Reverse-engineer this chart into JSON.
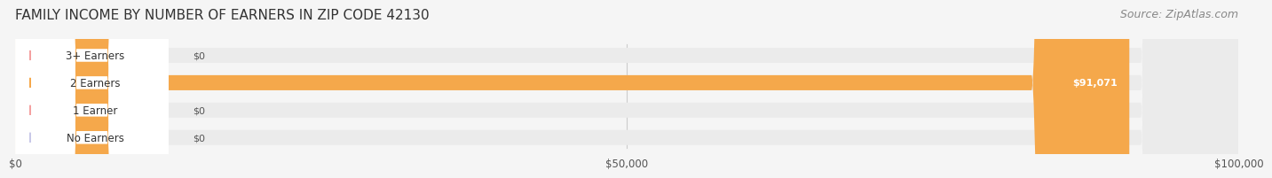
{
  "title": "FAMILY INCOME BY NUMBER OF EARNERS IN ZIP CODE 42130",
  "source": "Source: ZipAtlas.com",
  "categories": [
    "No Earners",
    "1 Earner",
    "2 Earners",
    "3+ Earners"
  ],
  "values": [
    0,
    0,
    91071,
    0
  ],
  "bar_colors": [
    "#a8a8d8",
    "#f08080",
    "#f5a84b",
    "#f08080"
  ],
  "label_bg_colors": [
    "#c8c8e8",
    "#f4a0a0",
    "#f5a84b",
    "#f4a0a0"
  ],
  "xlim": [
    0,
    100000
  ],
  "xticks": [
    0,
    50000,
    100000
  ],
  "xticklabels": [
    "$0",
    "$50,000",
    "$100,000"
  ],
  "value_labels": [
    "$0",
    "$0",
    "$91,071",
    "$0"
  ],
  "background_color": "#f5f5f5",
  "bar_bg_color": "#ebebeb",
  "title_fontsize": 11,
  "source_fontsize": 9
}
